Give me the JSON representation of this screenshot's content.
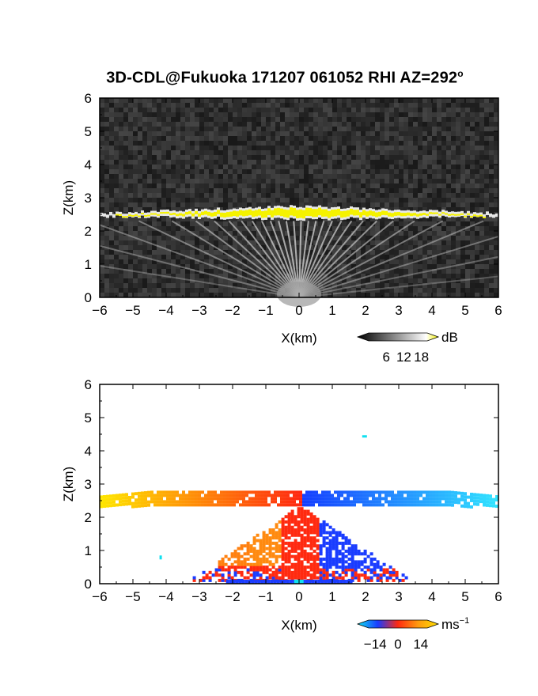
{
  "title": "3D-CDL@Fukuoka 171207 061052 RHI AZ=292",
  "title_degree": "o",
  "chart_data": [
    {
      "type": "heatmap",
      "panel": "intensity",
      "xlabel": "X(km)",
      "ylabel": "Z(km)",
      "xlim": [
        -6,
        6
      ],
      "ylim": [
        0,
        6
      ],
      "xticks": [
        "−6",
        "−5",
        "−4",
        "−3",
        "−2",
        "−1",
        "0",
        "1",
        "2",
        "3",
        "4",
        "5",
        "6"
      ],
      "yticks": [
        "0",
        "1",
        "2",
        "3",
        "4",
        "5",
        "6"
      ],
      "colorbar": {
        "unit": "dB",
        "ticks": [
          "6",
          "12",
          "18"
        ],
        "range": [
          0,
          20
        ]
      },
      "layer": {
        "top_km": 2.75,
        "base_km": 2.35,
        "extent_km": [
          -6,
          6
        ],
        "peak_dB": 20
      },
      "background_dB": 2,
      "colors": {
        "background": "#2a2a2a",
        "layer": "#f5f200"
      }
    },
    {
      "type": "heatmap",
      "panel": "velocity",
      "xlabel": "X(km)",
      "ylabel": "Z(km)",
      "xlim": [
        -6,
        6
      ],
      "ylim": [
        0,
        6
      ],
      "xticks": [
        "−6",
        "−5",
        "−4",
        "−3",
        "−2",
        "−1",
        "0",
        "1",
        "2",
        "3",
        "4",
        "5",
        "6"
      ],
      "yticks": [
        "0",
        "1",
        "2",
        "3",
        "4",
        "5",
        "6"
      ],
      "colorbar": {
        "unit": "ms",
        "unit_exp": "−1",
        "ticks": [
          "−14",
          "0",
          "14"
        ],
        "range": [
          -18,
          18
        ]
      },
      "colors": {
        "negative": "#1a3cff",
        "cyan": "#10e0f0",
        "zero": "#ff2a10",
        "positive": "#ffe000"
      }
    }
  ]
}
